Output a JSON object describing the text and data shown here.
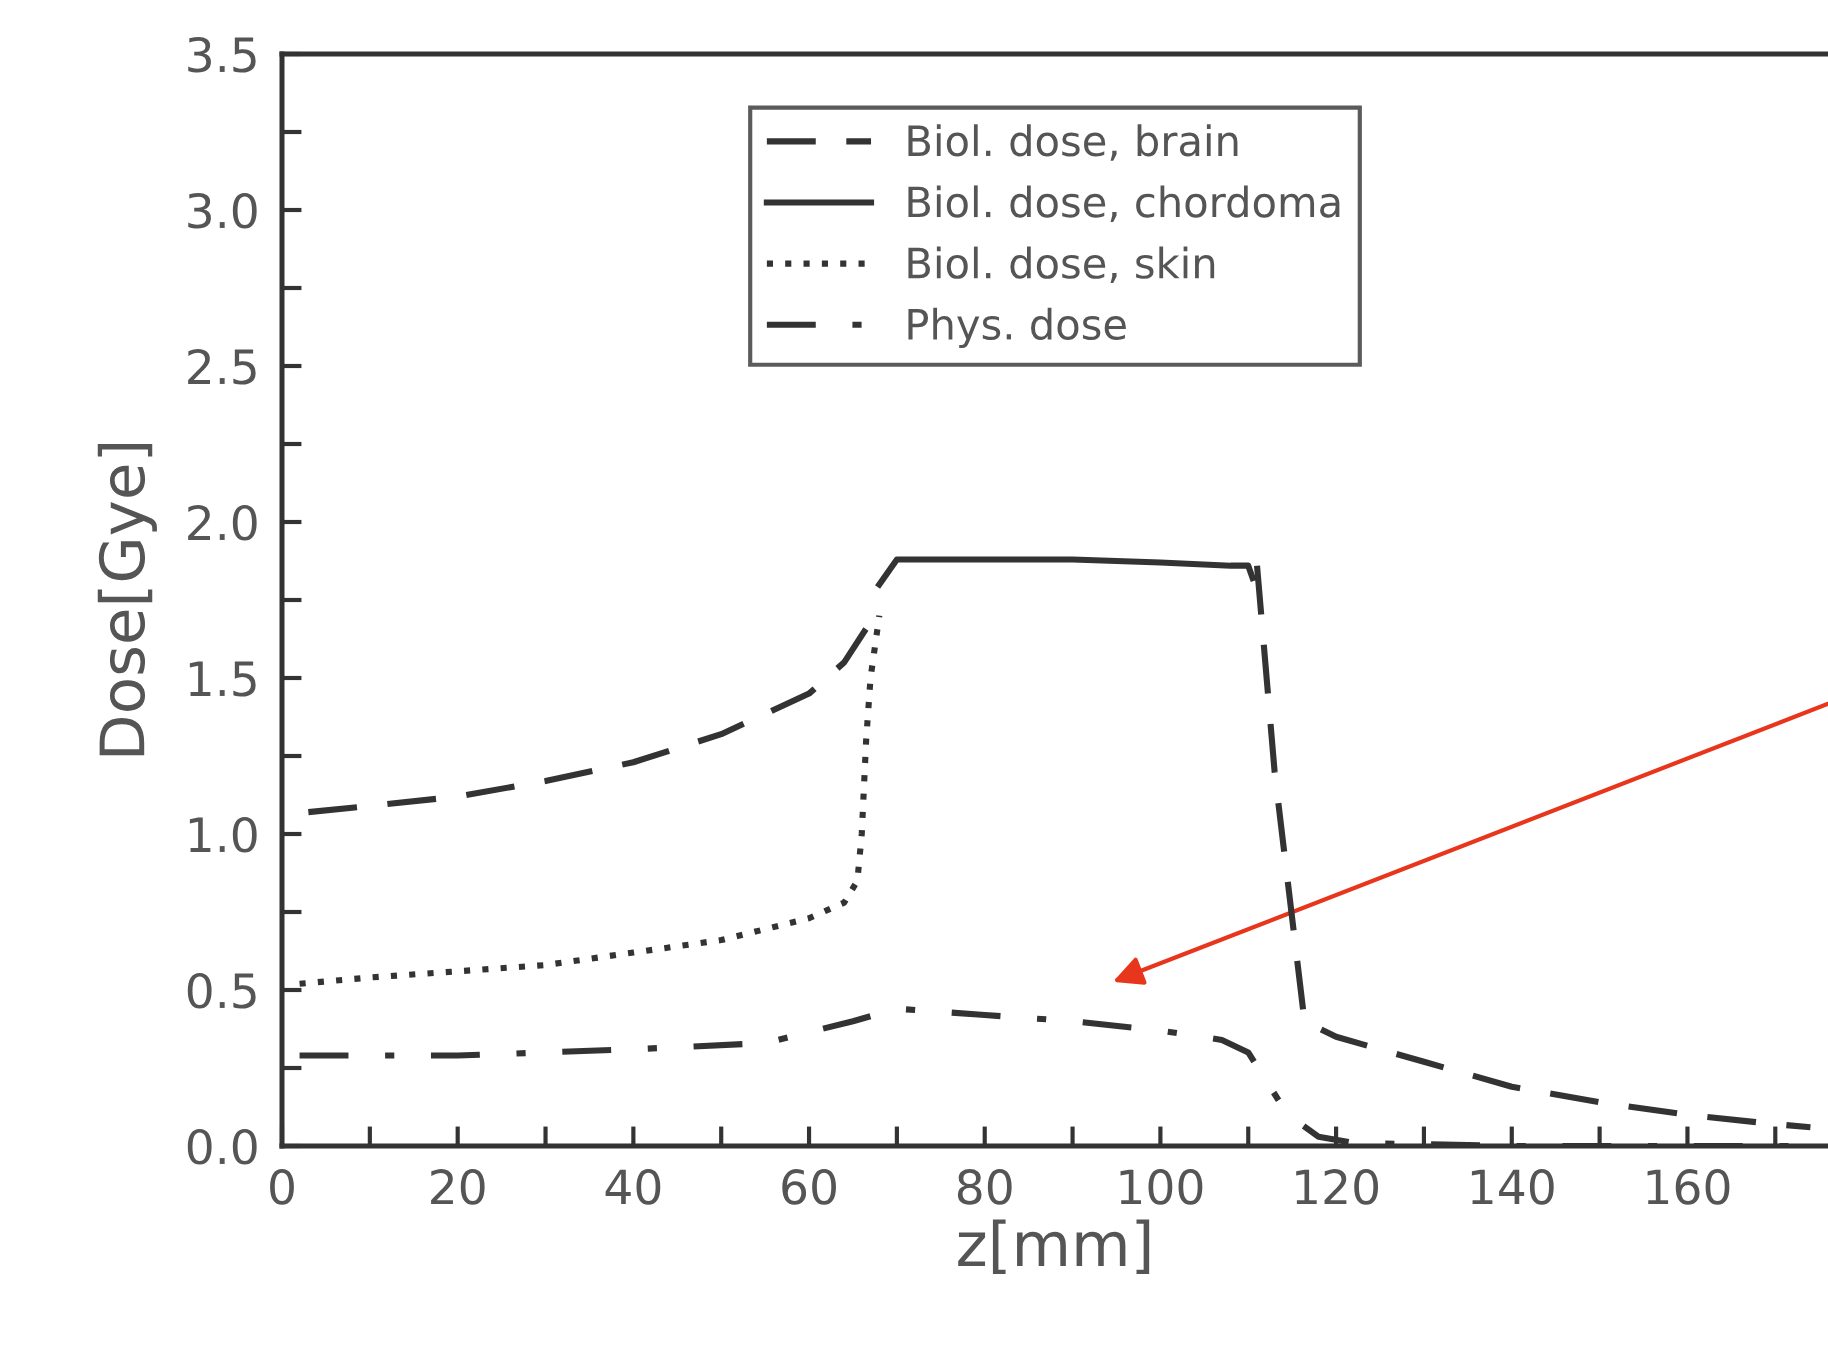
{
  "chart_data": {
    "type": "line",
    "xlabel": "z[mm]",
    "ylabel": "Dose[Gye]",
    "xlim": [
      0,
      176
    ],
    "ylim": [
      0,
      3.5
    ],
    "xticks": [
      0,
      {
        "value": 10,
        "label": null
      },
      20,
      {
        "value": 30,
        "label": null
      },
      40,
      {
        "value": 50,
        "label": null
      },
      60,
      {
        "value": 70,
        "label": null
      },
      80,
      {
        "value": 90,
        "label": null
      },
      100,
      {
        "value": 110,
        "label": null
      },
      120,
      {
        "value": 130,
        "label": null
      },
      140,
      {
        "value": 150,
        "label": null
      },
      160,
      {
        "value": 170,
        "label": null
      }
    ],
    "yticks": [
      {
        "value": 0,
        "label": "0.0"
      },
      {
        "value": 0.25,
        "label": null
      },
      0.5,
      {
        "value": 0.75,
        "label": null
      },
      {
        "value": 1,
        "label": "1.0"
      },
      {
        "value": 1.25,
        "label": null
      },
      1.5,
      {
        "value": 1.75,
        "label": null
      },
      {
        "value": 2,
        "label": "2.0"
      },
      {
        "value": 2.25,
        "label": null
      },
      2.5,
      {
        "value": 2.75,
        "label": null
      },
      {
        "value": 3,
        "label": "3.0"
      },
      {
        "value": 3.25,
        "label": null
      },
      3.5
    ],
    "grid": false,
    "legend": "top",
    "marker": "none",
    "series": [
      {
        "name": "Biol. dose, brain",
        "color": "#333333",
        "line_style": "dashed",
        "x": [
          3,
          10,
          20,
          30,
          40,
          50,
          60,
          64,
          67,
          90,
          111,
          113,
          116.4,
          120,
          130,
          140,
          150,
          160,
          170,
          174
        ],
        "values": [
          1.07,
          1.09,
          1.12,
          1.17,
          1.23,
          1.32,
          1.45,
          1.55,
          1.68,
          null,
          1.86,
          1.2,
          0.4,
          0.35,
          0.27,
          0.19,
          0.14,
          0.1,
          0.07,
          0.06
        ]
      },
      {
        "name": "Biol. dose, chordoma",
        "color": "#333333",
        "line_style": "solid",
        "x": [
          68,
          70,
          80,
          90,
          100,
          108,
          110,
          110.5
        ],
        "values": [
          1.8,
          1.88,
          1.88,
          1.88,
          1.87,
          1.86,
          1.86,
          1.82
        ]
      },
      {
        "name": "Biol. dose, skin",
        "color": "#333333",
        "line_style": "dotted",
        "x": [
          2,
          10,
          20,
          30,
          40,
          50,
          60,
          64,
          65.5,
          66,
          66.5,
          67,
          68
        ],
        "values": [
          0.52,
          0.54,
          0.56,
          0.58,
          0.62,
          0.66,
          0.73,
          0.78,
          0.85,
          1.0,
          1.3,
          1.5,
          1.7
        ]
      },
      {
        "name": "Phys. dose",
        "color": "#333333",
        "line_style": "dashdot",
        "x": [
          2,
          20,
          40,
          55,
          65,
          70,
          80,
          90,
          100,
          107,
          110,
          114.5,
          118,
          122,
          140,
          160,
          174
        ],
        "values": [
          0.29,
          0.29,
          0.31,
          0.33,
          0.4,
          0.44,
          0.42,
          0.4,
          0.37,
          0.34,
          0.3,
          0.1,
          0.03,
          0.01,
          0.0,
          0.0,
          0.0
        ]
      }
    ]
  }
}
